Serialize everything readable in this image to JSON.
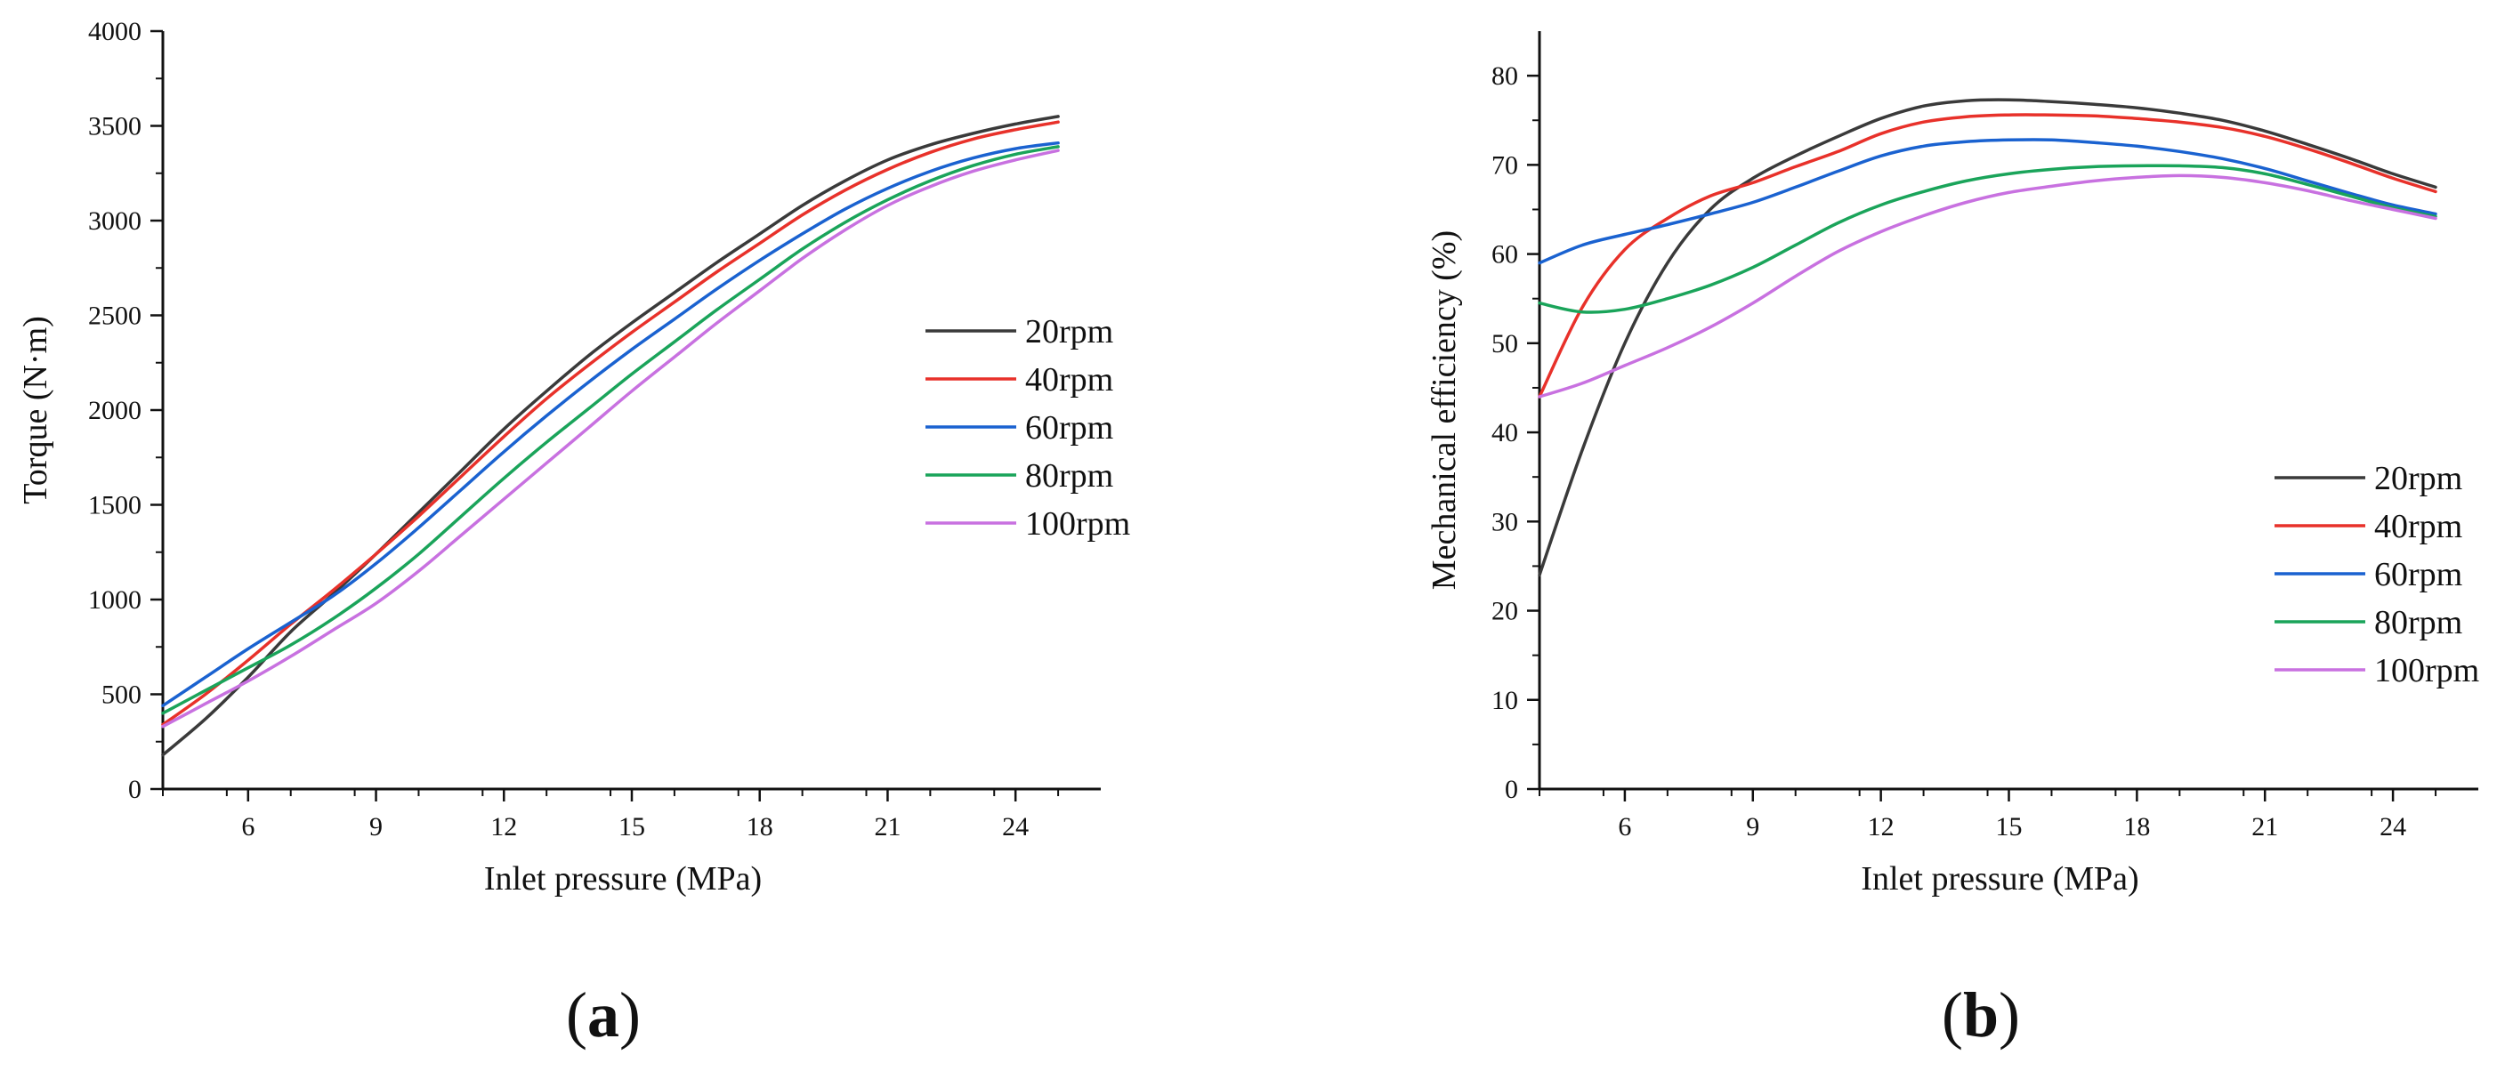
{
  "figure": {
    "panels": [
      {
        "label_open": "(",
        "label_letter": "a",
        "label_close": ")"
      },
      {
        "label_open": "(",
        "label_letter": "b",
        "label_close": ")"
      }
    ]
  },
  "chart_data": [
    {
      "type": "line",
      "title": "",
      "panel": "(a)",
      "xlabel": "Inlet pressure (MPa)",
      "ylabel": "Torque (N·m)",
      "xlim": [
        4,
        26
      ],
      "ylim": [
        0,
        4000
      ],
      "xticks": [
        6,
        9,
        12,
        15,
        18,
        21,
        24
      ],
      "yticks": [
        0,
        500,
        1000,
        1500,
        2000,
        2500,
        3000,
        3500,
        4000
      ],
      "x": [
        4,
        5,
        6,
        7,
        8,
        9,
        10,
        11,
        12,
        13,
        14,
        15,
        16,
        17,
        18,
        19,
        20,
        21,
        22,
        23,
        24,
        25
      ],
      "series": [
        {
          "name": "20rpm",
          "color": "#3a3a3a",
          "values": [
            180,
            370,
            590,
            830,
            1030,
            1240,
            1460,
            1680,
            1900,
            2100,
            2290,
            2460,
            2620,
            2780,
            2930,
            3080,
            3210,
            3320,
            3400,
            3460,
            3510,
            3550
          ]
        },
        {
          "name": "40rpm",
          "color": "#e8312a",
          "values": [
            340,
            500,
            680,
            870,
            1050,
            1240,
            1440,
            1650,
            1860,
            2060,
            2240,
            2410,
            2570,
            2730,
            2880,
            3030,
            3160,
            3270,
            3360,
            3430,
            3480,
            3520
          ]
        },
        {
          "name": "60rpm",
          "color": "#1a62d0",
          "values": [
            440,
            590,
            740,
            880,
            1020,
            1190,
            1380,
            1580,
            1780,
            1970,
            2150,
            2320,
            2480,
            2640,
            2790,
            2930,
            3060,
            3170,
            3260,
            3330,
            3380,
            3410
          ]
        },
        {
          "name": "80rpm",
          "color": "#1aa45a",
          "values": [
            400,
            520,
            640,
            760,
            900,
            1060,
            1240,
            1440,
            1640,
            1830,
            2010,
            2190,
            2360,
            2530,
            2690,
            2850,
            2990,
            3110,
            3210,
            3290,
            3350,
            3390
          ]
        },
        {
          "name": "100rpm",
          "color": "#c871e0",
          "values": [
            330,
            450,
            570,
            700,
            840,
            980,
            1150,
            1340,
            1530,
            1720,
            1910,
            2100,
            2280,
            2460,
            2630,
            2800,
            2950,
            3080,
            3180,
            3260,
            3320,
            3370
          ]
        }
      ],
      "legend_position": "right"
    },
    {
      "type": "line",
      "title": "",
      "panel": "(b)",
      "xlabel": "Inlet pressure (MPa)",
      "ylabel": "Mechanical efficiency (%)",
      "xlim": [
        4,
        26
      ],
      "ylim": [
        0,
        85
      ],
      "xticks": [
        6,
        9,
        12,
        15,
        18,
        21,
        24
      ],
      "yticks": [
        0,
        10,
        20,
        30,
        40,
        50,
        60,
        70,
        80
      ],
      "x": [
        4,
        5,
        6,
        7,
        8,
        9,
        10,
        11,
        12,
        13,
        14,
        15,
        16,
        17,
        18,
        19,
        20,
        21,
        22,
        23,
        24,
        25
      ],
      "series": [
        {
          "name": "20rpm",
          "color": "#3a3a3a",
          "values": [
            24,
            38,
            50,
            59,
            65,
            68.5,
            71,
            73.2,
            75.2,
            76.6,
            77.2,
            77.3,
            77.1,
            76.8,
            76.4,
            75.8,
            75,
            73.8,
            72.3,
            70.7,
            69,
            67.5
          ]
        },
        {
          "name": "40rpm",
          "color": "#e8312a",
          "values": [
            44,
            54,
            60.5,
            64,
            66.5,
            68,
            69.8,
            71.5,
            73.5,
            74.8,
            75.4,
            75.6,
            75.6,
            75.5,
            75.2,
            74.8,
            74.2,
            73.2,
            71.8,
            70.2,
            68.5,
            67
          ]
        },
        {
          "name": "60rpm",
          "color": "#1a62d0",
          "values": [
            59,
            61,
            62.2,
            63.3,
            64.5,
            65.8,
            67.5,
            69.3,
            71,
            72.1,
            72.6,
            72.8,
            72.8,
            72.5,
            72.1,
            71.5,
            70.7,
            69.6,
            68.2,
            66.8,
            65.5,
            64.5
          ]
        },
        {
          "name": "80rpm",
          "color": "#1aa45a",
          "values": [
            54.5,
            53.5,
            53.8,
            55,
            56.5,
            58.5,
            61,
            63.5,
            65.5,
            67,
            68.2,
            69,
            69.5,
            69.8,
            69.9,
            69.9,
            69.7,
            69,
            67.8,
            66.5,
            65.2,
            64.2
          ]
        },
        {
          "name": "100rpm",
          "color": "#c871e0",
          "values": [
            44,
            45.5,
            47.5,
            49.5,
            51.8,
            54.5,
            57.5,
            60.3,
            62.5,
            64.3,
            65.8,
            66.9,
            67.6,
            68.2,
            68.6,
            68.8,
            68.6,
            68,
            67.1,
            66,
            65,
            64
          ]
        }
      ],
      "legend_position": "lower-right"
    }
  ]
}
